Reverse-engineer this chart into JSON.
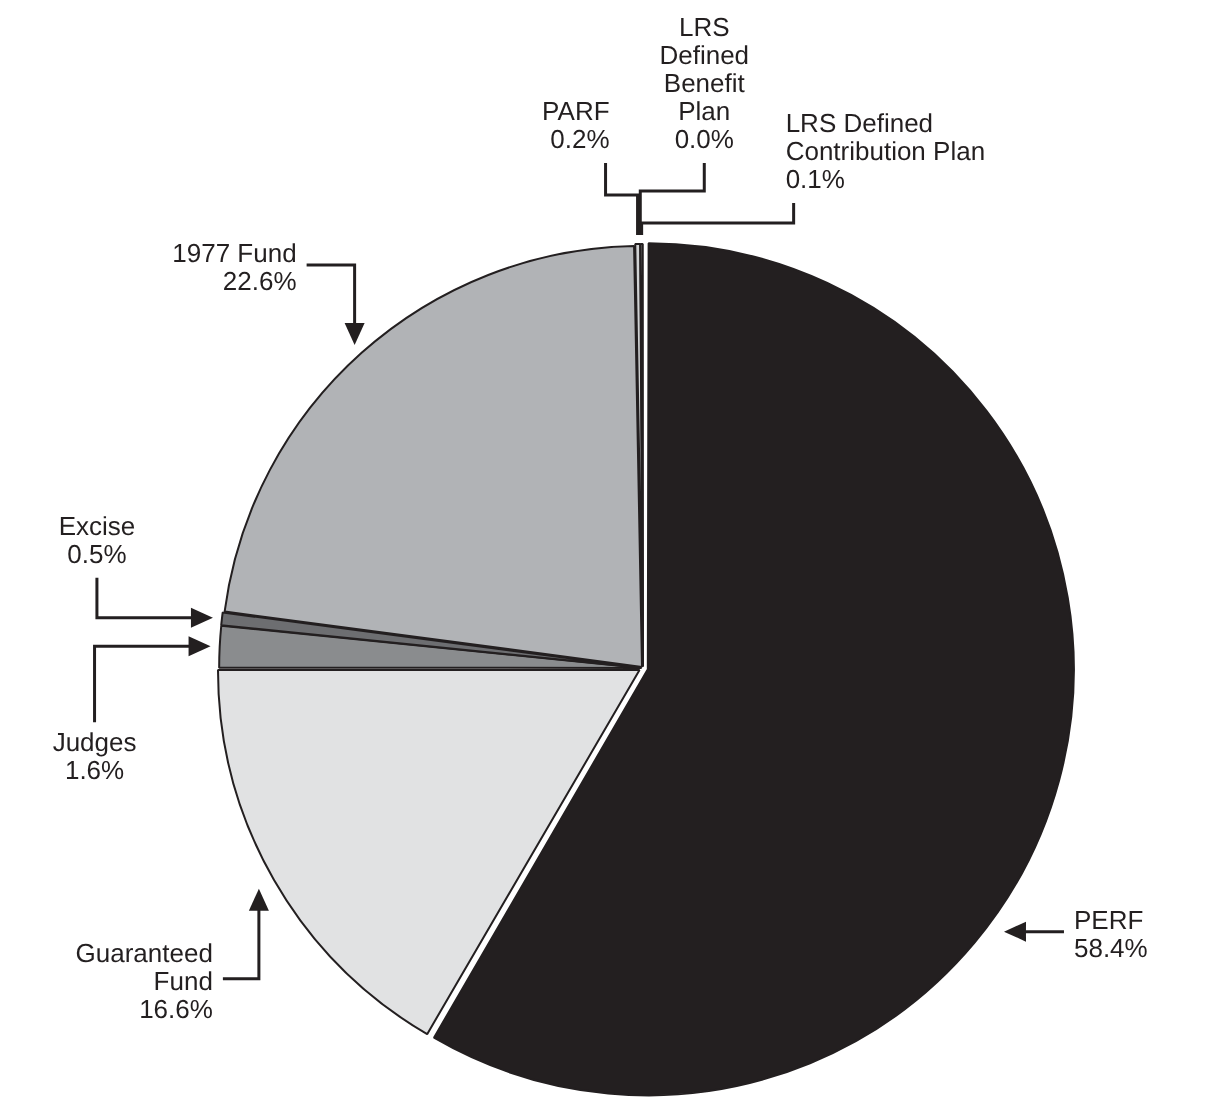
{
  "chart_data": {
    "type": "pie",
    "categories": [
      "PERF",
      "Guaranteed Fund",
      "Judges",
      "Excise",
      "1977 Fund",
      "PARF",
      "LRS Defined Benefit Plan",
      "LRS Defined Contribution Plan"
    ],
    "values": [
      58.4,
      16.6,
      1.6,
      0.5,
      22.6,
      0.2,
      0.0,
      0.1
    ],
    "colors": [
      "#231f20",
      "#e1e2e3",
      "#8a8c8e",
      "#6d6e71",
      "#b1b3b6",
      "#d1d3d4",
      "#ffffff",
      "#ffffff"
    ],
    "value_labels": [
      "58.4%",
      "16.6%",
      "1.6%",
      "0.5%",
      "22.6%",
      "0.2%",
      "0.0%",
      "0.1%"
    ]
  }
}
